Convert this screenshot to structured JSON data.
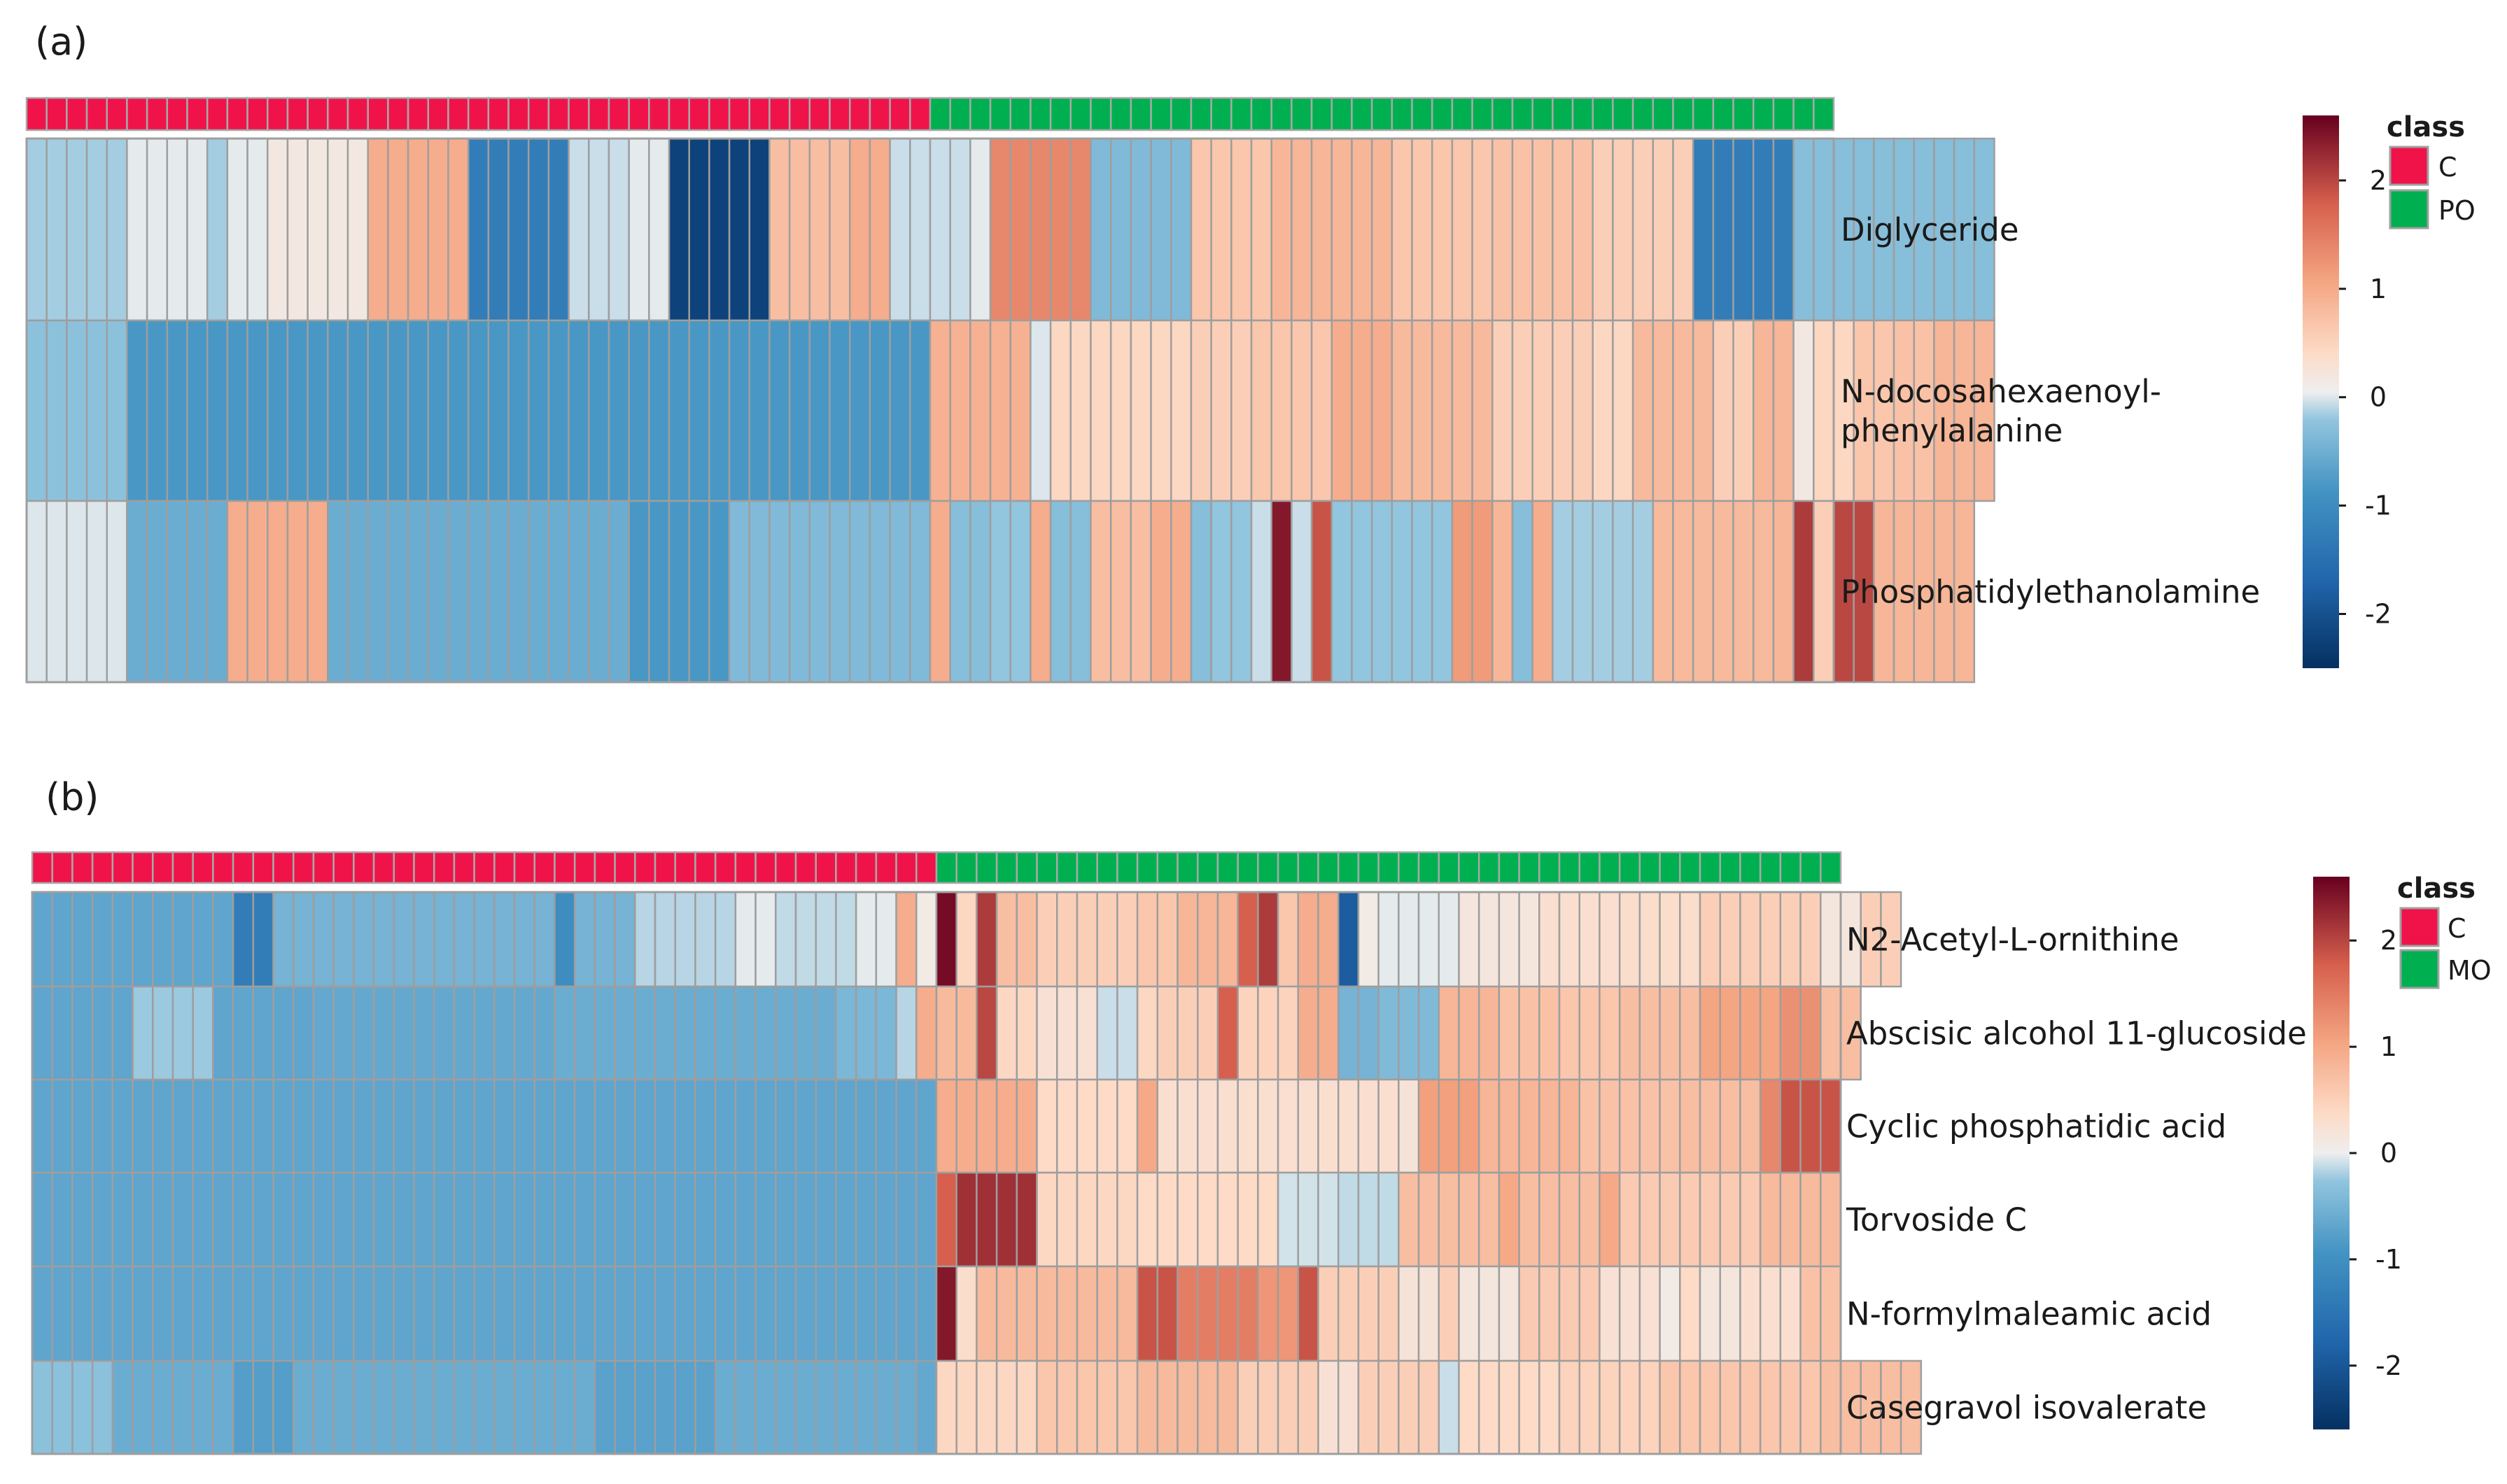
{
  "chart_data": [
    {
      "type": "heatmap",
      "panel_label": "(a)",
      "classes": [
        {
          "name": "C",
          "count": 45
        },
        {
          "name": "PO",
          "count": 45
        }
      ],
      "legend_title": "class",
      "colorbar": {
        "min": -2.5,
        "max": 2.6,
        "ticks": [
          "2",
          "1",
          "0",
          "-1",
          "-2"
        ]
      },
      "rows": [
        "Diglyceride",
        "N-docosahexaenoyl-\nphenylalanine",
        "Phosphatidylethanolamine"
      ],
      "pattern": [
        {
          "segments": [
            [
              5,
              -0.4
            ],
            [
              4,
              -0.05
            ],
            [
              1,
              -0.4
            ],
            [
              2,
              -0.05
            ],
            [
              3,
              0.15
            ],
            [
              2,
              0.15
            ],
            [
              3,
              1.0
            ],
            [
              2,
              1.0
            ],
            [
              5,
              -1.6
            ],
            [
              3,
              -0.2
            ],
            [
              2,
              -0.05
            ],
            [
              5,
              -2.4
            ],
            [
              4,
              0.8
            ],
            [
              2,
              1.0
            ],
            [
              4,
              -0.2
            ],
            [
              1,
              -0.05
            ],
            [
              5,
              1.4
            ],
            [
              5,
              -0.65
            ],
            [
              4,
              0.7
            ],
            [
              6,
              0.9
            ],
            [
              5,
              0.7
            ],
            [
              5,
              0.75
            ],
            [
              5,
              0.6
            ],
            [
              5,
              -1.6
            ],
            [
              10,
              -0.6
            ]
          ]
        },
        {
          "segments": [
            [
              5,
              -0.55
            ],
            [
              40,
              -1.15
            ],
            [
              5,
              0.95
            ],
            [
              1,
              -0.1
            ],
            [
              7,
              0.5
            ],
            [
              3,
              0.6
            ],
            [
              4,
              0.7
            ],
            [
              3,
              1.0
            ],
            [
              5,
              0.85
            ],
            [
              5,
              0.6
            ],
            [
              2,
              0.5
            ],
            [
              4,
              0.85
            ],
            [
              2,
              0.6
            ],
            [
              2,
              0.9
            ],
            [
              1,
              0.15
            ],
            [
              2,
              0.5
            ],
            [
              2,
              0.7
            ],
            [
              2,
              0.75
            ],
            [
              3,
              0.9
            ]
          ]
        },
        {
          "segments": [
            [
              5,
              -0.1
            ],
            [
              5,
              -0.85
            ],
            [
              5,
              1.0
            ],
            [
              15,
              -0.85
            ],
            [
              5,
              -1.15
            ],
            [
              10,
              -0.65
            ],
            [
              1,
              1.0
            ],
            [
              2,
              -0.6
            ],
            [
              2,
              -0.5
            ],
            [
              1,
              1.0
            ],
            [
              2,
              -0.6
            ],
            [
              3,
              0.8
            ],
            [
              2,
              1.0
            ],
            [
              1,
              -0.6
            ],
            [
              2,
              -0.5
            ],
            [
              1,
              -0.2
            ],
            [
              1,
              2.4
            ],
            [
              1,
              -0.2
            ],
            [
              1,
              1.9
            ],
            [
              6,
              -0.5
            ],
            [
              2,
              1.2
            ],
            [
              1,
              0.9
            ],
            [
              1,
              -0.6
            ],
            [
              1,
              1.0
            ],
            [
              5,
              -0.4
            ],
            [
              6,
              0.85
            ],
            [
              1,
              0.9
            ],
            [
              1,
              2.1
            ],
            [
              1,
              0.6
            ],
            [
              2,
              2.0
            ],
            [
              5,
              0.9
            ]
          ]
        }
      ]
    },
    {
      "type": "heatmap",
      "panel_label": "(b)",
      "classes": [
        {
          "name": "C",
          "count": 45
        },
        {
          "name": "MO",
          "count": 45
        }
      ],
      "legend_title": "class",
      "colorbar": {
        "min": -2.6,
        "max": 2.6,
        "ticks": [
          "2",
          "1",
          "0",
          "-1",
          "-2"
        ]
      },
      "rows": [
        "N2-Acetyl-L-ornithine",
        "Abscisic alcohol 11-glucoside",
        "Cyclic phosphatidic acid",
        "Torvoside C",
        "N-formylmaleamic acid",
        "Casegravol isovalerate"
      ],
      "pattern": [
        {
          "segments": [
            [
              10,
              -0.95
            ],
            [
              2,
              -1.6
            ],
            [
              14,
              -0.75
            ],
            [
              1,
              -1.3
            ],
            [
              3,
              -0.75
            ],
            [
              5,
              -0.3
            ],
            [
              2,
              -0.05
            ],
            [
              4,
              -0.25
            ],
            [
              2,
              -0.05
            ],
            [
              1,
              1.0
            ],
            [
              1,
              0.1
            ],
            [
              1,
              2.5
            ],
            [
              1,
              0.5
            ],
            [
              1,
              2.1
            ],
            [
              2,
              0.8
            ],
            [
              5,
              0.6
            ],
            [
              2,
              0.7
            ],
            [
              3,
              0.9
            ],
            [
              1,
              1.8
            ],
            [
              1,
              2.1
            ],
            [
              1,
              0.7
            ],
            [
              2,
              1.0
            ],
            [
              1,
              -2.1
            ],
            [
              1,
              0.1
            ],
            [
              4,
              -0.05
            ],
            [
              4,
              0.2
            ],
            [
              4,
              0.35
            ],
            [
              4,
              0.4
            ],
            [
              4,
              0.6
            ],
            [
              2,
              0.6
            ],
            [
              2,
              0.2
            ],
            [
              2,
              0.6
            ]
          ]
        },
        {
          "segments": [
            [
              5,
              -0.95
            ],
            [
              4,
              -0.45
            ],
            [
              5,
              -0.95
            ],
            [
              12,
              -0.9
            ],
            [
              14,
              -0.85
            ],
            [
              3,
              -0.7
            ],
            [
              1,
              -0.3
            ],
            [
              1,
              1.0
            ],
            [
              2,
              0.85
            ],
            [
              1,
              2.0
            ],
            [
              2,
              0.5
            ],
            [
              3,
              0.3
            ],
            [
              2,
              -0.2
            ],
            [
              1,
              0.5
            ],
            [
              3,
              0.6
            ],
            [
              1,
              1.8
            ],
            [
              3,
              0.55
            ],
            [
              2,
              1.0
            ],
            [
              2,
              -0.75
            ],
            [
              3,
              -0.65
            ],
            [
              3,
              0.9
            ],
            [
              3,
              0.75
            ],
            [
              3,
              0.7
            ],
            [
              4,
              0.8
            ],
            [
              4,
              1.1
            ],
            [
              2,
              1.3
            ],
            [
              2,
              0.8
            ]
          ]
        },
        {
          "segments": [
            [
              45,
              -0.95
            ],
            [
              5,
              1.0
            ],
            [
              5,
              0.45
            ],
            [
              1,
              1.05
            ],
            [
              12,
              0.35
            ],
            [
              1,
              0.25
            ],
            [
              3,
              1.15
            ],
            [
              5,
              0.9
            ],
            [
              5,
              0.75
            ],
            [
              4,
              0.8
            ],
            [
              1,
              1.4
            ],
            [
              3,
              1.9
            ]
          ]
        },
        {
          "segments": [
            [
              45,
              -0.95
            ],
            [
              1,
              1.8
            ],
            [
              4,
              2.2
            ],
            [
              5,
              0.5
            ],
            [
              7,
              0.45
            ],
            [
              3,
              -0.15
            ],
            [
              3,
              -0.25
            ],
            [
              5,
              0.8
            ],
            [
              1,
              1.05
            ],
            [
              4,
              0.8
            ],
            [
              1,
              1.05
            ],
            [
              7,
              0.65
            ],
            [
              4,
              0.85
            ]
          ]
        },
        {
          "segments": [
            [
              45,
              -0.95
            ],
            [
              1,
              2.4
            ],
            [
              1,
              0.4
            ],
            [
              8,
              0.85
            ],
            [
              2,
              1.9
            ],
            [
              4,
              1.5
            ],
            [
              2,
              1.25
            ],
            [
              1,
              1.9
            ],
            [
              4,
              0.6
            ],
            [
              2,
              0.25
            ],
            [
              1,
              0.6
            ],
            [
              3,
              0.2
            ],
            [
              4,
              0.65
            ],
            [
              3,
              0.3
            ],
            [
              1,
              0.1
            ],
            [
              1,
              0.45
            ],
            [
              2,
              0.2
            ],
            [
              3,
              0.35
            ],
            [
              2,
              0.75
            ]
          ]
        },
        {
          "segments": [
            [
              4,
              -0.55
            ],
            [
              6,
              -0.85
            ],
            [
              3,
              -1.05
            ],
            [
              15,
              -0.85
            ],
            [
              6,
              -1.0
            ],
            [
              10,
              -0.85
            ],
            [
              1,
              -0.9
            ],
            [
              5,
              0.5
            ],
            [
              5,
              0.7
            ],
            [
              5,
              0.85
            ],
            [
              4,
              0.6
            ],
            [
              2,
              0.3
            ],
            [
              4,
              0.6
            ],
            [
              1,
              -0.2
            ],
            [
              5,
              0.45
            ],
            [
              5,
              0.55
            ],
            [
              8,
              0.7
            ],
            [
              5,
              0.8
            ]
          ]
        }
      ]
    }
  ]
}
